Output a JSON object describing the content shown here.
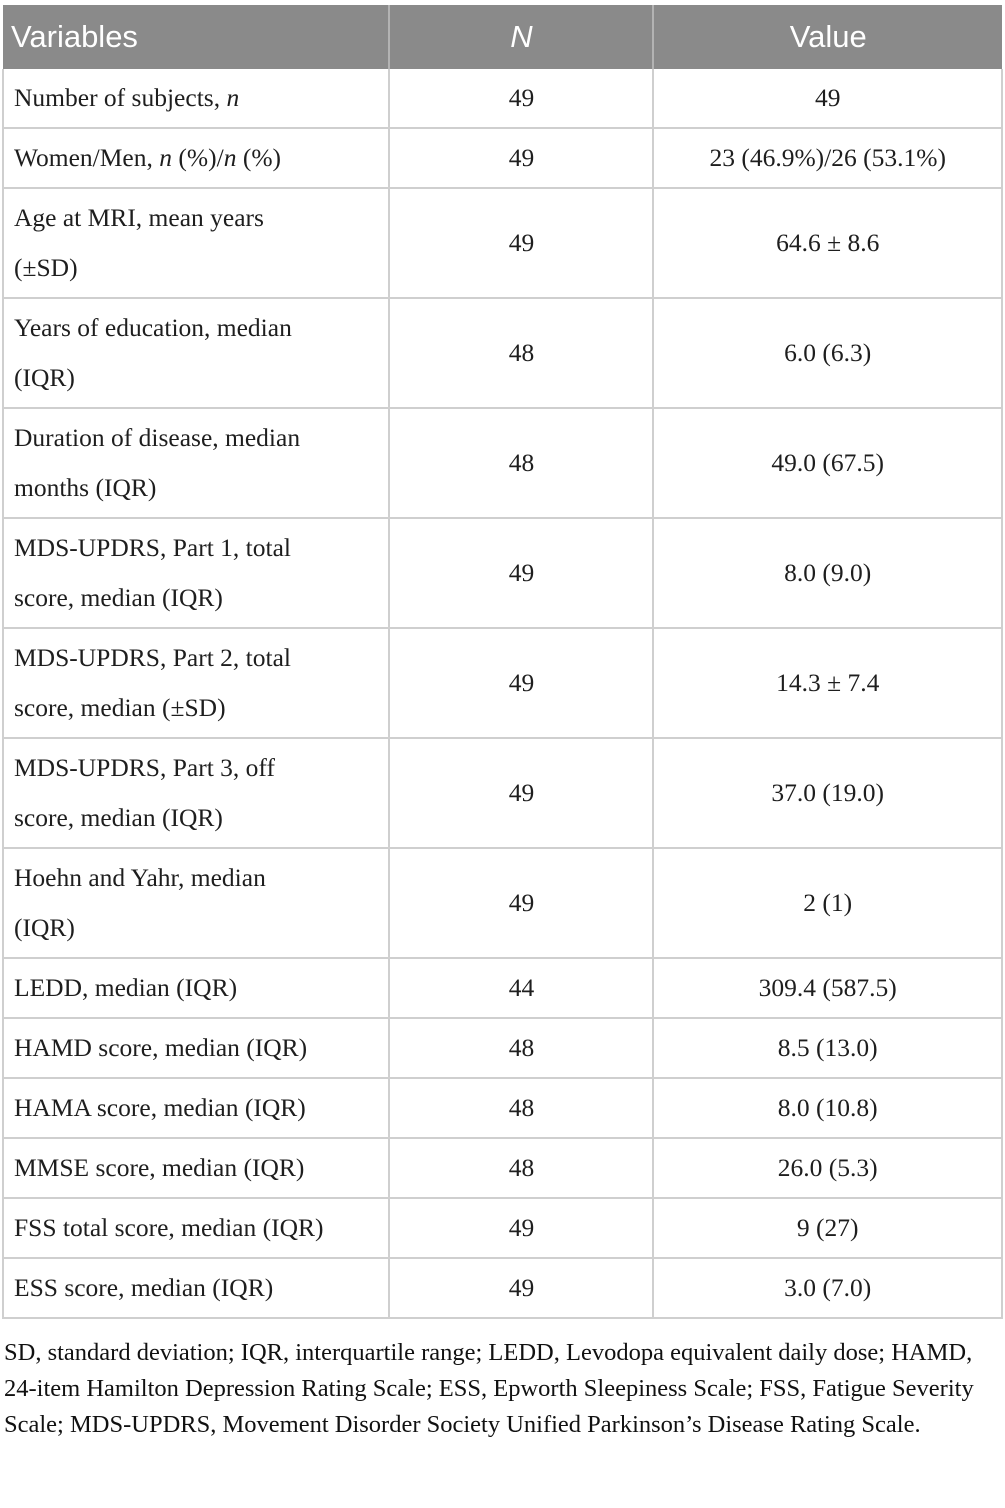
{
  "table": {
    "columns": [
      {
        "label": "Variables"
      },
      {
        "label": "N"
      },
      {
        "label": "Value"
      }
    ],
    "rows": [
      {
        "variable": "Number of subjects, *n*",
        "n": "49",
        "value": "49"
      },
      {
        "variable": "Women/Men, *n* (%)/*n* (%)",
        "n": "49",
        "value": "23 (46.9%)/26 (53.1%)"
      },
      {
        "variable": "Age at MRI, mean years\n(±SD)",
        "n": "49",
        "value": "64.6 ± 8.6"
      },
      {
        "variable": "Years of education, median\n(IQR)",
        "n": "48",
        "value": "6.0 (6.3)"
      },
      {
        "variable": "Duration of disease, median\nmonths (IQR)",
        "n": "48",
        "value": "49.0 (67.5)"
      },
      {
        "variable": "MDS-UPDRS, Part 1, total\nscore, median (IQR)",
        "n": "49",
        "value": "8.0 (9.0)"
      },
      {
        "variable": "MDS-UPDRS, Part 2, total\nscore, median (±SD)",
        "n": "49",
        "value": "14.3 ± 7.4"
      },
      {
        "variable": "MDS-UPDRS, Part 3, off\nscore, median (IQR)",
        "n": "49",
        "value": "37.0 (19.0)"
      },
      {
        "variable": "Hoehn and Yahr, median\n(IQR)",
        "n": "49",
        "value": "2 (1)"
      },
      {
        "variable": "LEDD, median (IQR)",
        "n": "44",
        "value": "309.4 (587.5)"
      },
      {
        "variable": "HAMD score, median (IQR)",
        "n": "48",
        "value": "8.5 (13.0)"
      },
      {
        "variable": "HAMA score, median (IQR)",
        "n": "48",
        "value": "8.0 (10.8)"
      },
      {
        "variable": "MMSE score, median (IQR)",
        "n": "48",
        "value": "26.0 (5.3)"
      },
      {
        "variable": "FSS total score, median (IQR)",
        "n": "49",
        "value": "9 (27)"
      },
      {
        "variable": "ESS score, median (IQR)",
        "n": "49",
        "value": "3.0 (7.0)"
      }
    ]
  },
  "footnote": "SD, standard deviation; IQR, interquartile range; LEDD, Levodopa equivalent daily dose; HAMD, 24-item Hamilton Depression Rating Scale; ESS, Epworth Sleepiness Scale; FSS, Fatigue Severity Scale; MDS-UPDRS, Movement Disorder Society Unified Parkinson’s Disease Rating Scale.",
  "colors": {
    "header_bg": "#8a8a8a",
    "header_text": "#ffffff",
    "body_text": "#1e1e1e",
    "border": "#cfcfcf"
  }
}
